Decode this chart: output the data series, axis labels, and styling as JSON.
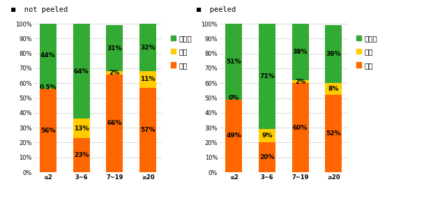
{
  "left_title": "not peeled",
  "right_title": "peeled",
  "categories": [
    "≤2",
    "3~6",
    "7~19",
    "≥20"
  ],
  "colors": {
    "insam": "#FF6600",
    "dadeok": "#FFCC00",
    "doraji": "#33AA33"
  },
  "left_data": {
    "insam": [
      56,
      23,
      66,
      57
    ],
    "dadeok": [
      0.5,
      13,
      2,
      11
    ],
    "doraji": [
      44,
      64,
      31,
      32
    ]
  },
  "right_data": {
    "insam": [
      49,
      20,
      60,
      52
    ],
    "dadeok": [
      0,
      9,
      2,
      8
    ],
    "doraji": [
      51,
      71,
      38,
      39
    ]
  },
  "left_labels_insam": [
    "56%",
    "23%",
    "66%",
    "57%"
  ],
  "left_labels_dadeok": [
    "0.5%",
    "13%",
    "2%",
    "11%"
  ],
  "left_labels_doraji": [
    "44%",
    "64%",
    "31%",
    "32%"
  ],
  "right_labels_insam": [
    "49%",
    "20%",
    "60%",
    "52%"
  ],
  "right_labels_dadeok": [
    "0%",
    "9%",
    "2%",
    "8%"
  ],
  "right_labels_doraji": [
    "51%",
    "71%",
    "38%",
    "39%"
  ],
  "legend_labels": [
    "도라지",
    "더덕",
    "인삼"
  ],
  "bar_width": 0.5,
  "ylim": [
    0,
    100
  ],
  "yticks": [
    0,
    10,
    20,
    30,
    40,
    50,
    60,
    70,
    80,
    90,
    100
  ],
  "ytick_labels": [
    "0%",
    "10%",
    "20%",
    "30%",
    "40%",
    "50%",
    "60%",
    "70%",
    "80%",
    "90%",
    "100%"
  ],
  "font_size_label": 6.5,
  "font_size_tick": 6,
  "font_size_title": 7.5,
  "font_size_legend": 7.5,
  "bg_color": "#FFFFFF",
  "grid_color": "#CCCCCC"
}
